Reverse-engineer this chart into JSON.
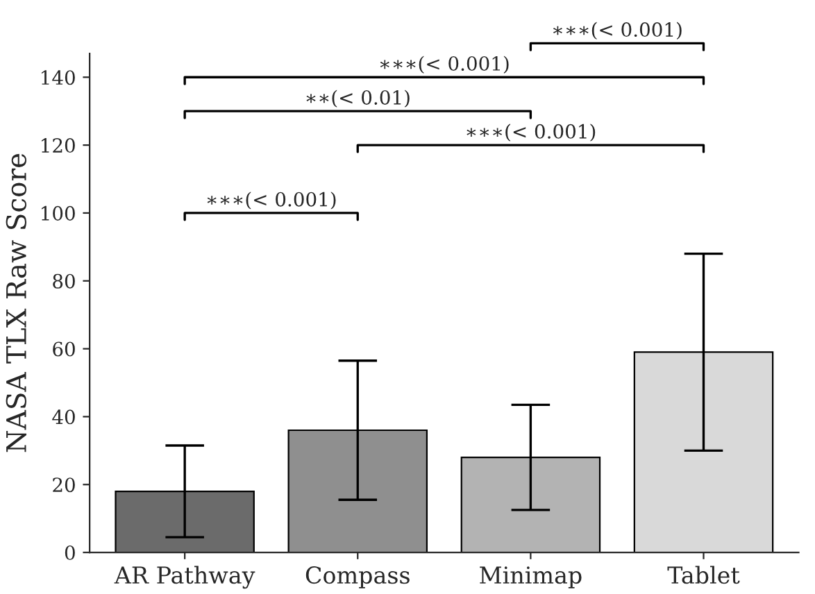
{
  "chart_data": {
    "type": "bar",
    "ylabel": "NASA TLX Raw Score",
    "categories": [
      "AR Pathway",
      "Compass",
      "Minimap",
      "Tablet"
    ],
    "values": [
      18,
      36,
      28,
      59
    ],
    "errors": [
      13.5,
      20.5,
      15.5,
      29
    ],
    "colors": [
      "#6b6b6b",
      "#8f8f8f",
      "#b3b3b3",
      "#d9d9d9"
    ],
    "ylim": [
      0,
      147
    ],
    "yticks": [
      0,
      20,
      40,
      60,
      80,
      100,
      120,
      140
    ],
    "grid": false,
    "annotations": [
      "∗∗∗(< 0.001)",
      "∗∗∗(< 0.001)",
      "∗∗(< 0.01)",
      "∗∗∗(< 0.001)",
      "∗∗∗(< 0.001)"
    ]
  }
}
